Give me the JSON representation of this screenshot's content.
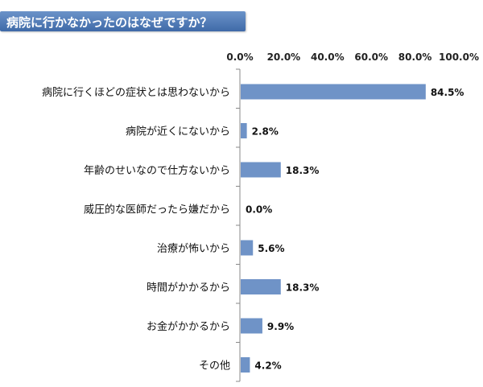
{
  "title": "病院に行かなかったのはなぜですか？",
  "colors": {
    "bar": "#6f93c7",
    "title_bg": "#4f79b4",
    "axis": "#888888"
  },
  "chart_data": {
    "type": "bar",
    "orientation": "horizontal",
    "categories": [
      "病院に行くほどの症状とは思わないから",
      "病院が近くにないから",
      "年齢のせいなので仕方ないから",
      "威圧的な医師だったら嫌だから",
      "治療が怖いから",
      "時間がかかるから",
      "お金がかかるから",
      "その他"
    ],
    "values": [
      84.5,
      2.8,
      18.3,
      0.0,
      5.6,
      18.3,
      9.9,
      4.2
    ],
    "value_labels": [
      "84.5%",
      "2.8%",
      "18.3%",
      "0.0%",
      "5.6%",
      "18.3%",
      "9.9%",
      "4.2%"
    ],
    "xlim": [
      0,
      100
    ],
    "x_ticks": [
      "0.0%",
      "20.0%",
      "40.0%",
      "60.0%",
      "80.0%",
      "100.0%"
    ],
    "grid": false,
    "legend": "none"
  }
}
